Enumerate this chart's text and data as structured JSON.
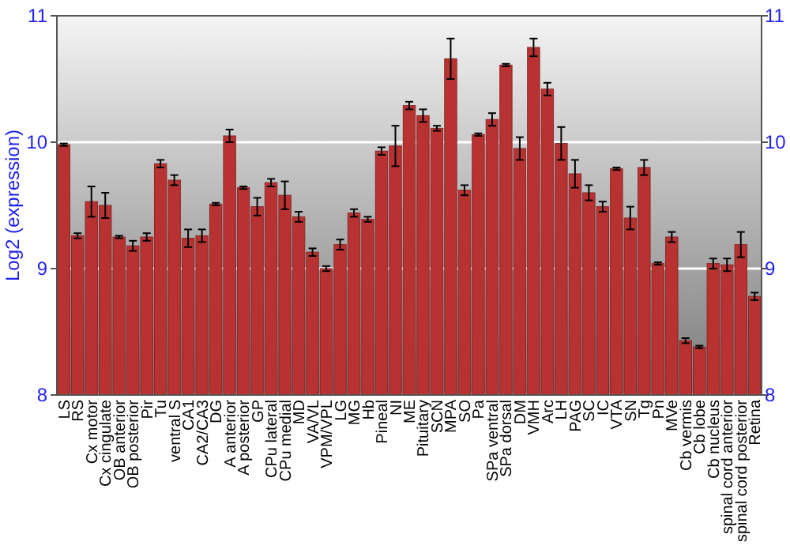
{
  "chart_data": {
    "type": "bar",
    "ylabel": "Log2 (expression)",
    "categories": [
      "LS",
      "RS",
      "Cx motor",
      "Cx cingulate",
      "OB anterior",
      "OB posterior",
      "Pir",
      "Tu",
      "ventral S",
      "CA1",
      "CA2/CA3",
      "DG",
      "A anterior",
      "A posterior",
      "GP",
      "CPu lateral",
      "CPu medial",
      "MD",
      "VA/VL",
      "VPM/VPL",
      "LG",
      "MG",
      "Hb",
      "Pineal",
      "NI",
      "ME",
      "Pituitary",
      "SCN",
      "MPA",
      "SO",
      "Pa",
      "SPa ventral",
      "SPa dorsal",
      "DM",
      "VMH",
      "Arc",
      "LH",
      "PAG",
      "SC",
      "IC",
      "VTA",
      "SN",
      "Tg",
      "Pn",
      "MVe",
      "Cb vermis",
      "Cb lobe",
      "Cb nucleus",
      "spinal cord anterior",
      "spinal cord posterior",
      "Retina"
    ],
    "values": [
      9.98,
      9.26,
      9.53,
      9.5,
      9.25,
      9.18,
      9.25,
      9.83,
      9.7,
      9.24,
      9.26,
      9.51,
      10.05,
      9.64,
      9.49,
      9.68,
      9.58,
      9.41,
      9.13,
      9.0,
      9.19,
      9.44,
      9.39,
      9.93,
      9.97,
      10.29,
      10.21,
      10.11,
      10.66,
      9.62,
      10.06,
      10.18,
      10.61,
      9.95,
      10.75,
      10.42,
      9.99,
      9.75,
      9.6,
      9.49,
      9.79,
      9.4,
      9.8,
      9.04,
      9.25,
      8.43,
      8.38,
      9.04,
      9.03,
      9.19,
      8.78
    ],
    "errors": [
      0.01,
      0.02,
      0.12,
      0.1,
      0.01,
      0.04,
      0.03,
      0.03,
      0.04,
      0.07,
      0.05,
      0.01,
      0.05,
      0.01,
      0.07,
      0.03,
      0.11,
      0.04,
      0.03,
      0.02,
      0.04,
      0.03,
      0.02,
      0.03,
      0.16,
      0.03,
      0.05,
      0.02,
      0.16,
      0.04,
      0.01,
      0.05,
      0.01,
      0.09,
      0.07,
      0.05,
      0.13,
      0.11,
      0.06,
      0.04,
      0.01,
      0.09,
      0.06,
      0.01,
      0.04,
      0.02,
      0.01,
      0.04,
      0.05,
      0.1,
      0.03
    ],
    "color": "#b83232",
    "ylim": [
      8,
      11
    ],
    "yticks": [
      8,
      9,
      10,
      11
    ],
    "y2lim": [
      8,
      11
    ],
    "y2ticks": [
      8,
      9,
      10,
      11
    ],
    "grid": "y"
  }
}
